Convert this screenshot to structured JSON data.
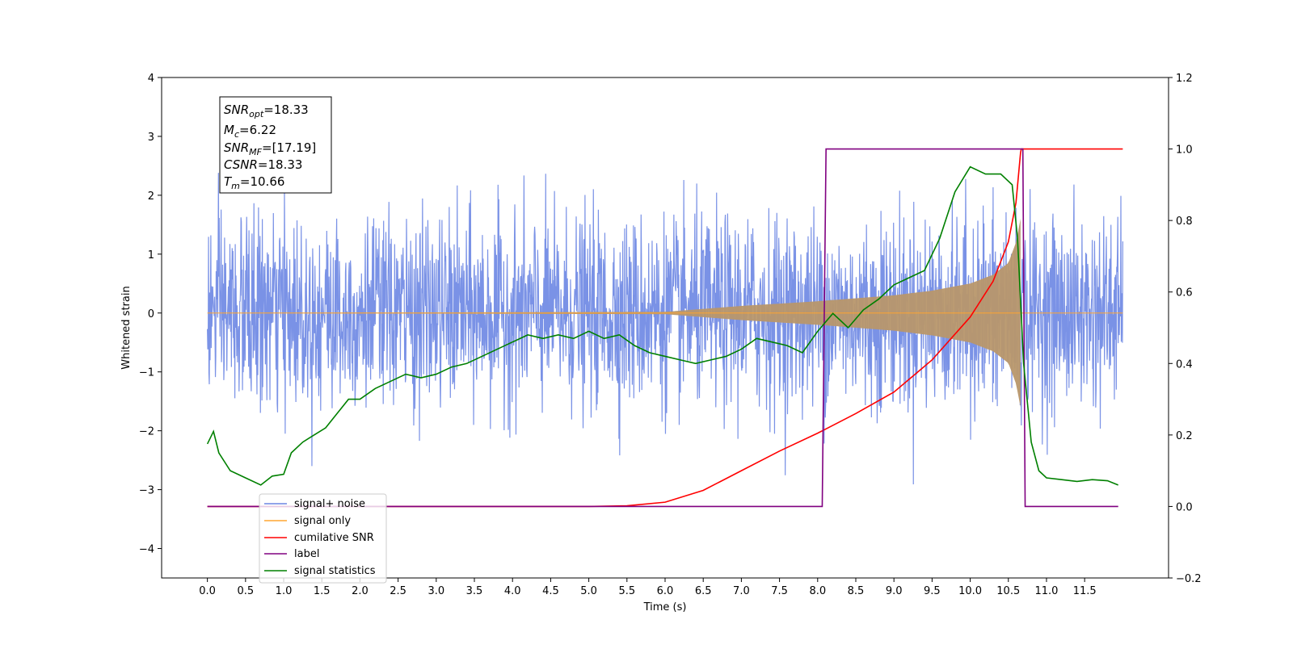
{
  "chart_data": {
    "type": "line",
    "xlabel": "Time (s)",
    "ylabel": "Whitened strain",
    "y2label": "",
    "xlim": [
      -0.6,
      12.6
    ],
    "ylim": [
      -4.5,
      4.0
    ],
    "y2lim": [
      -0.2,
      1.2
    ],
    "grid": false,
    "legend_position": "lower-left",
    "x_ticks": [
      "0.0",
      "0.5",
      "1.0",
      "1.5",
      "2.0",
      "2.5",
      "3.0",
      "3.5",
      "4.0",
      "4.5",
      "5.0",
      "5.5",
      "6.0",
      "6.5",
      "7.0",
      "7.5",
      "8.0",
      "8.5",
      "9.0",
      "9.5",
      "10.0",
      "10.5",
      "11.0",
      "11.5"
    ],
    "y_ticks": [
      "4",
      "3",
      "2",
      "1",
      "0",
      "−1",
      "−2",
      "−3",
      "−4"
    ],
    "y2_ticks": [
      "1.2",
      "1.0",
      "0.8",
      "0.6",
      "0.4",
      "0.2",
      "0.0",
      "−0.2"
    ],
    "annotation": {
      "snr_opt": {
        "base": "SNR",
        "sub": "opt",
        "value": "=18.33"
      },
      "mc": {
        "base": "M",
        "sub": "c",
        "value": "=6.22"
      },
      "snr_mf": {
        "base": "SNR",
        "sub": "MF",
        "value": "=[17.19]"
      },
      "csnr": {
        "base": "CSNR",
        "sub": "",
        "value": "=18.33"
      },
      "tm": {
        "base": "T",
        "sub": "m",
        "value": "=10.66"
      }
    },
    "series": [
      {
        "name": "signal+ noise",
        "color": "#6b86e3",
        "axis": "left",
        "kind": "noise",
        "x_range": [
          0.0,
          12.0
        ],
        "envelope_std": 0.8,
        "peak_min": -4.1,
        "peak_max": 3.65
      },
      {
        "name": "signal only",
        "color": "#ffa530",
        "axis": "left",
        "kind": "chirp",
        "x_start": 0.0,
        "x_merger": 10.66,
        "x_end": 12.0,
        "amplitude": {
          "x": [
            0.0,
            6.0,
            7.0,
            8.0,
            9.0,
            9.5,
            10.0,
            10.3,
            10.5,
            10.6,
            10.66
          ],
          "y": [
            0.0,
            0.02,
            0.12,
            0.2,
            0.3,
            0.38,
            0.5,
            0.65,
            0.85,
            1.2,
            1.6
          ]
        }
      },
      {
        "name": "cumilative SNR",
        "color": "#ff0000",
        "axis": "right",
        "x": [
          0.0,
          5.0,
          5.5,
          6.0,
          6.5,
          7.0,
          7.5,
          8.0,
          8.5,
          9.0,
          9.5,
          10.0,
          10.3,
          10.5,
          10.6,
          10.66,
          10.67,
          12.0
        ],
        "y": [
          0.0,
          0.0,
          0.002,
          0.012,
          0.045,
          0.1,
          0.155,
          0.205,
          0.26,
          0.32,
          0.41,
          0.53,
          0.63,
          0.74,
          0.85,
          0.99,
          1.0,
          1.0
        ]
      },
      {
        "name": "label",
        "color": "#800080",
        "axis": "right",
        "x": [
          0.0,
          8.06,
          8.11,
          10.69,
          10.72,
          11.94
        ],
        "y": [
          0.0,
          0.0,
          1.0,
          1.0,
          0.0,
          0.0
        ]
      },
      {
        "name": "signal statistics",
        "color": "#008000",
        "axis": "right",
        "x": [
          0.0,
          0.08,
          0.15,
          0.3,
          0.5,
          0.7,
          0.85,
          1.0,
          1.1,
          1.25,
          1.4,
          1.55,
          1.7,
          1.85,
          2.0,
          2.2,
          2.4,
          2.6,
          2.8,
          3.0,
          3.2,
          3.4,
          3.6,
          3.8,
          4.0,
          4.2,
          4.4,
          4.6,
          4.8,
          5.0,
          5.2,
          5.4,
          5.6,
          5.8,
          6.0,
          6.2,
          6.4,
          6.6,
          6.8,
          7.0,
          7.2,
          7.4,
          7.6,
          7.8,
          8.0,
          8.2,
          8.4,
          8.6,
          8.8,
          9.0,
          9.2,
          9.4,
          9.6,
          9.8,
          10.0,
          10.2,
          10.4,
          10.55,
          10.62,
          10.7,
          10.8,
          10.9,
          11.0,
          11.2,
          11.4,
          11.6,
          11.8,
          11.94
        ],
        "y": [
          0.175,
          0.21,
          0.15,
          0.1,
          0.08,
          0.06,
          0.085,
          0.09,
          0.15,
          0.18,
          0.2,
          0.22,
          0.26,
          0.3,
          0.3,
          0.33,
          0.35,
          0.37,
          0.36,
          0.37,
          0.39,
          0.4,
          0.42,
          0.44,
          0.46,
          0.48,
          0.47,
          0.48,
          0.47,
          0.49,
          0.47,
          0.48,
          0.45,
          0.43,
          0.42,
          0.41,
          0.4,
          0.41,
          0.42,
          0.44,
          0.47,
          0.46,
          0.45,
          0.43,
          0.49,
          0.54,
          0.5,
          0.55,
          0.58,
          0.62,
          0.64,
          0.66,
          0.75,
          0.88,
          0.95,
          0.93,
          0.93,
          0.9,
          0.75,
          0.4,
          0.18,
          0.1,
          0.08,
          0.075,
          0.07,
          0.075,
          0.072,
          0.06
        ]
      }
    ]
  }
}
